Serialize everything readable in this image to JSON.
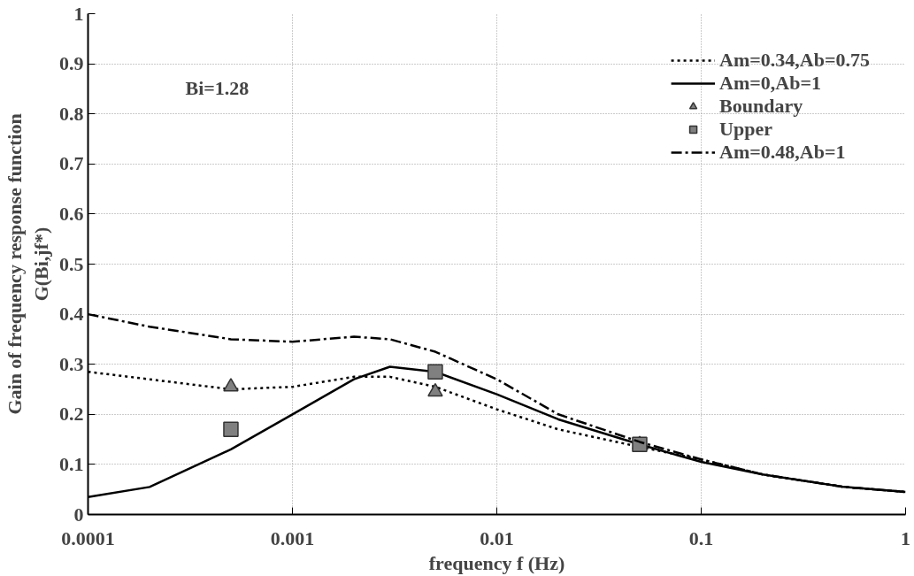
{
  "chart_data": {
    "type": "line",
    "xlabel": "frequency f (Hz)",
    "ylabel": "Gain of frequency response function\nG(Bi,jf*)",
    "annotations": [
      "Bi=1.28"
    ],
    "log": "x",
    "grid": true,
    "legend": "top right",
    "xlim": [
      0.0001,
      1
    ],
    "ylim": [
      0,
      1
    ],
    "xticks": [
      {
        "value": 0.0001,
        "label": "0.0001"
      },
      {
        "value": 0.001,
        "label": "0.001"
      },
      {
        "value": 0.01,
        "label": "0.01"
      },
      {
        "value": 0.1,
        "label": "0.1"
      },
      1
    ],
    "yticks": [
      0,
      {
        "value": 0.1,
        "label": "0.1"
      },
      {
        "value": 0.2,
        "label": "0.2"
      },
      {
        "value": 0.3,
        "label": "0.3"
      },
      {
        "value": 0.4,
        "label": "0.4"
      },
      {
        "value": 0.5,
        "label": "0.5"
      },
      {
        "value": 0.6,
        "label": "0.6"
      },
      {
        "value": 0.7,
        "label": "0.7"
      },
      {
        "value": 0.8,
        "label": "0.8"
      },
      {
        "value": 0.9,
        "label": "0.9"
      },
      1
    ],
    "series": [
      {
        "name": "Am=0.34,Ab=0.75",
        "line_style": "dotted",
        "color": "#000000",
        "x": [
          0.0001,
          0.0002,
          0.0005,
          0.001,
          0.002,
          0.003,
          0.005,
          0.01,
          0.02,
          0.05,
          0.1,
          0.2,
          0.5,
          1
        ],
        "values": [
          0.285,
          0.27,
          0.25,
          0.255,
          0.275,
          0.275,
          0.255,
          0.21,
          0.17,
          0.135,
          0.11,
          0.08,
          0.055,
          0.045
        ]
      },
      {
        "name": "Am=0,Ab=1",
        "line_style": "solid",
        "color": "#000000",
        "x": [
          0.0001,
          0.0002,
          0.0005,
          0.001,
          0.002,
          0.003,
          0.005,
          0.01,
          0.02,
          0.05,
          0.1,
          0.2,
          0.5,
          1
        ],
        "values": [
          0.035,
          0.055,
          0.13,
          0.2,
          0.27,
          0.295,
          0.285,
          0.24,
          0.19,
          0.14,
          0.105,
          0.08,
          0.055,
          0.045
        ]
      },
      {
        "name": "Boundary",
        "type": "scatter",
        "marker": "triangle",
        "color": "#808080",
        "x": [
          0.0005,
          0.005,
          0.05
        ],
        "values": [
          0.255,
          0.245,
          0.14
        ]
      },
      {
        "name": "Upper",
        "type": "scatter",
        "marker": "square",
        "color": "#808080",
        "x": [
          0.0005,
          0.005,
          0.05
        ],
        "values": [
          0.17,
          0.285,
          0.14
        ]
      },
      {
        "name": "Am=0.48,Ab=1",
        "line_style": "dashed",
        "color": "#000000",
        "x": [
          0.0001,
          0.0002,
          0.0005,
          0.001,
          0.002,
          0.003,
          0.005,
          0.01,
          0.02,
          0.05,
          0.1,
          0.2,
          0.5,
          1
        ],
        "values": [
          0.4,
          0.375,
          0.35,
          0.345,
          0.355,
          0.35,
          0.325,
          0.27,
          0.2,
          0.145,
          0.11,
          0.08,
          0.055,
          0.045
        ]
      }
    ]
  }
}
